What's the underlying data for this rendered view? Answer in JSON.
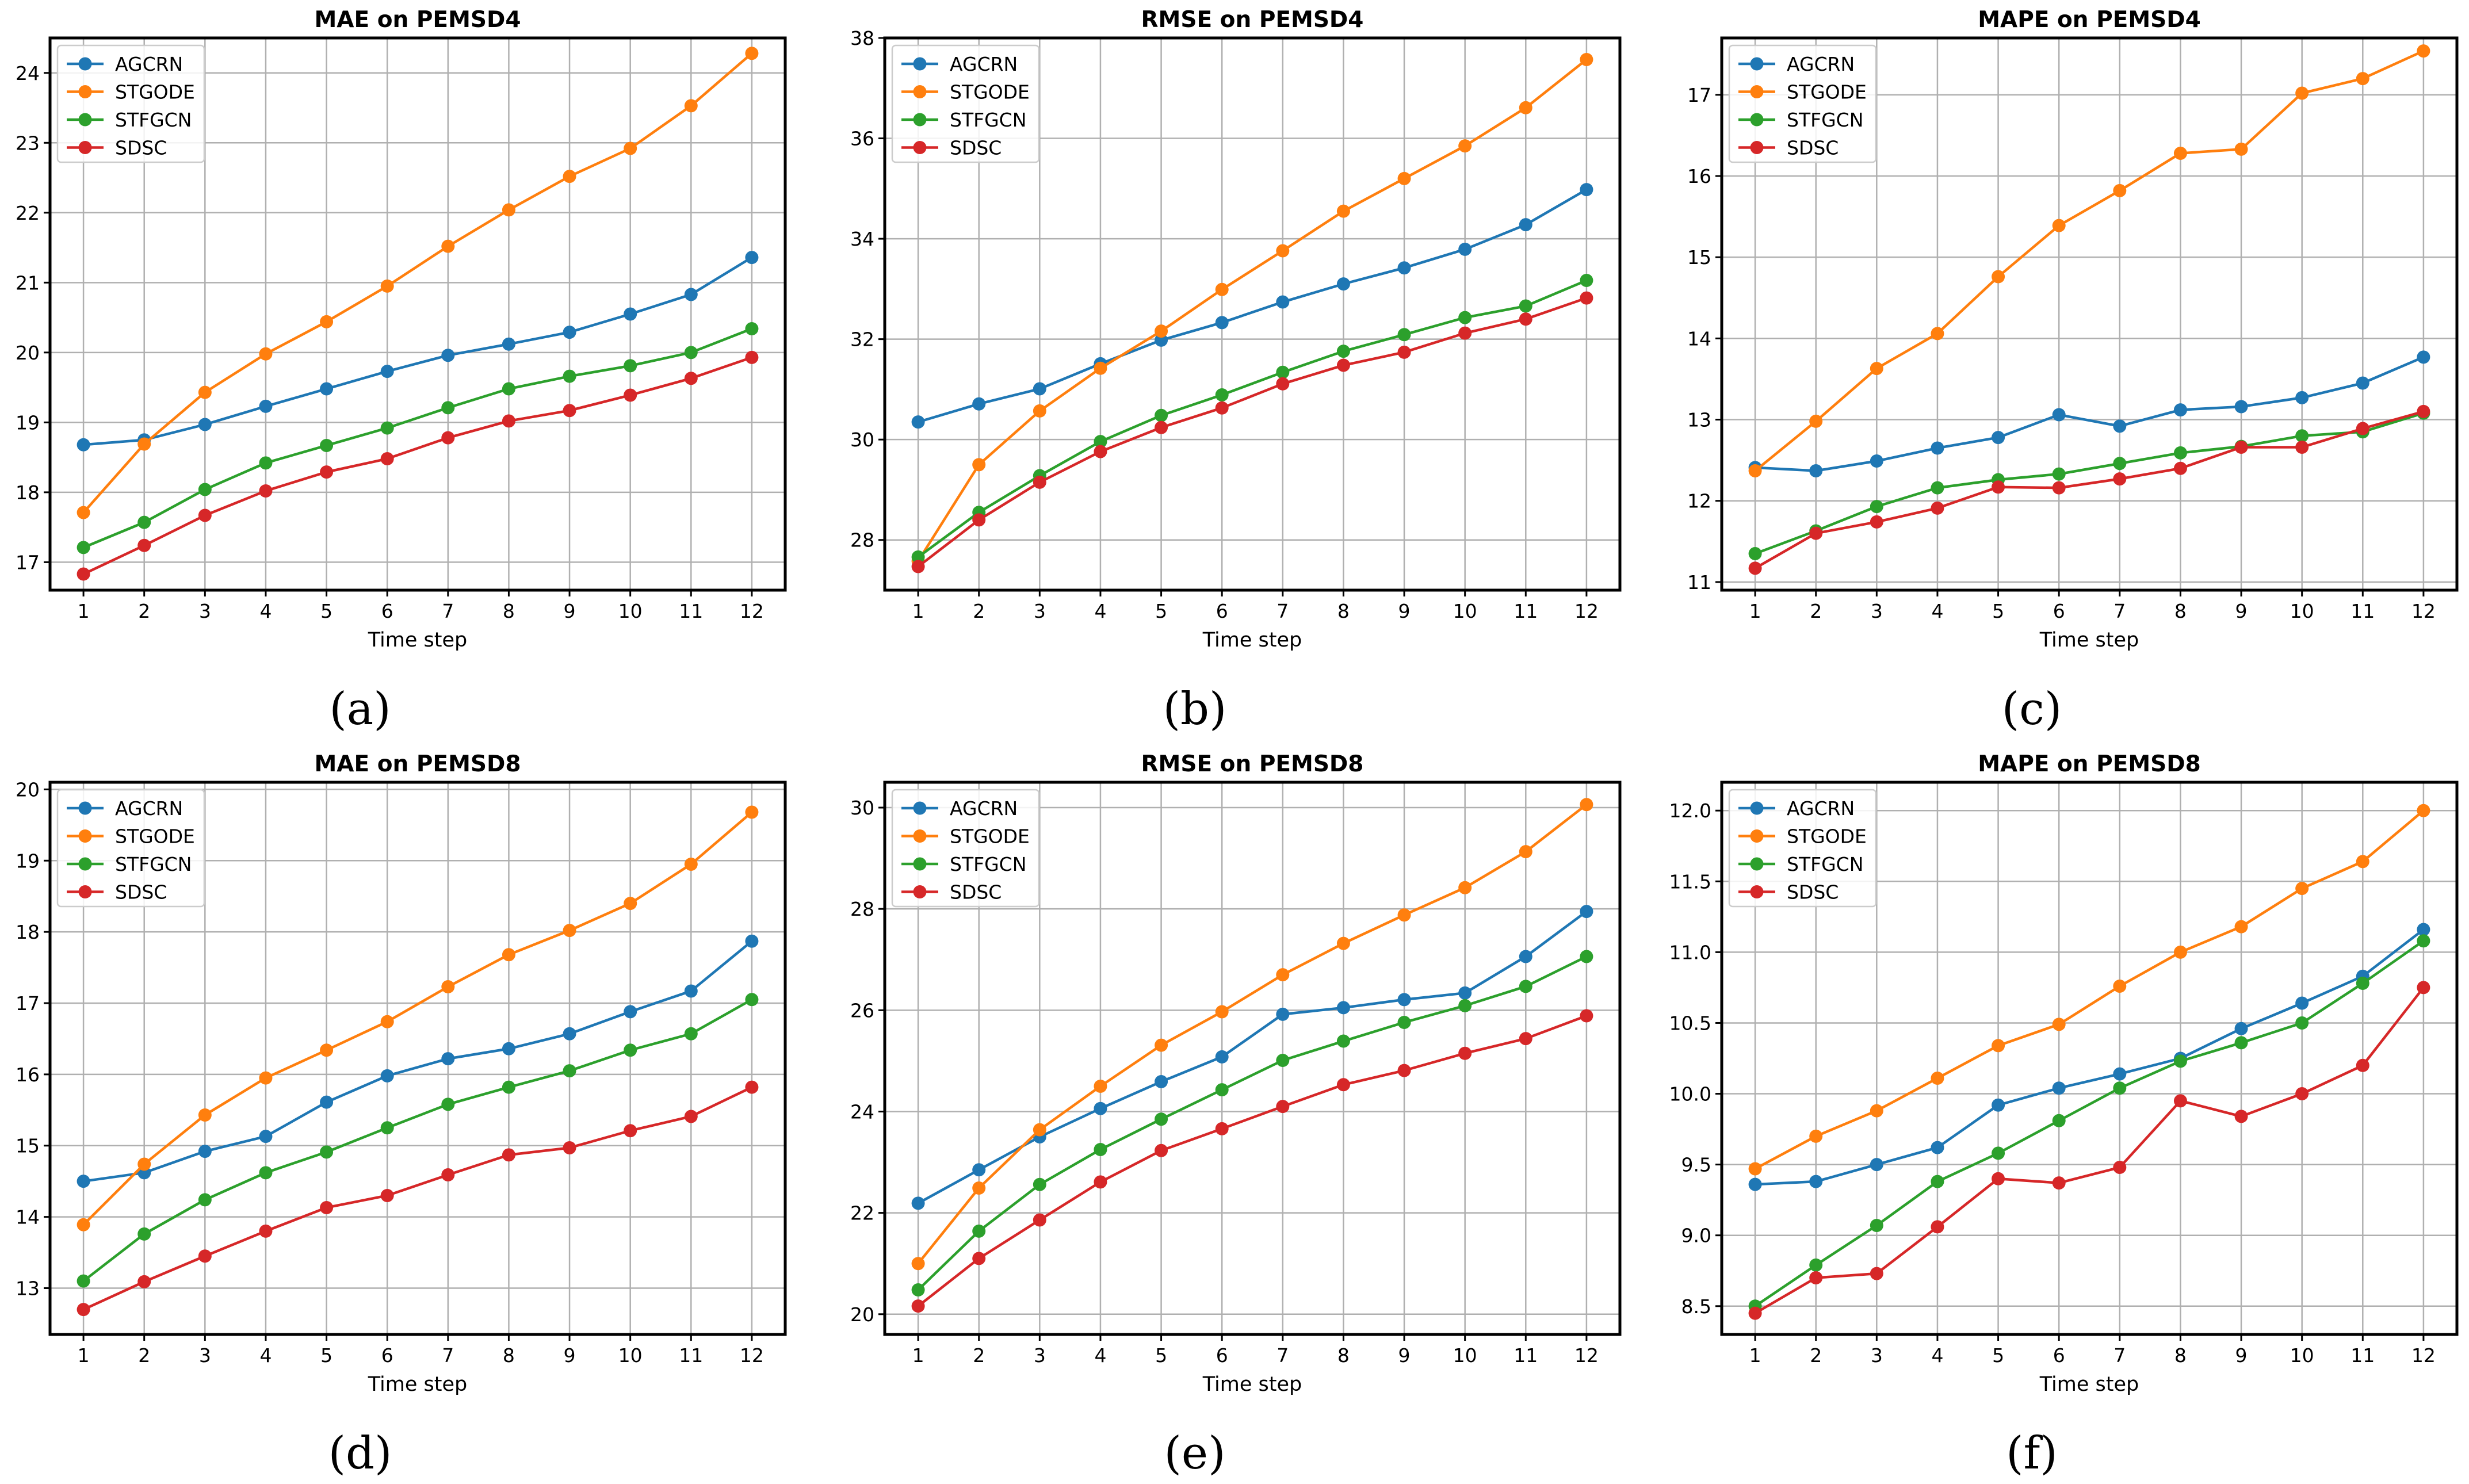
{
  "series_colors": {
    "AGCRN": "#1f77b4",
    "STGODE": "#ff7f0e",
    "STFGCN": "#2ca02c",
    "SDSC": "#d62728"
  },
  "chart_data": [
    {
      "type": "line",
      "title": "MAE on PEMSD4",
      "caption": "(a)",
      "xlabel": "Time step",
      "ylabel": "",
      "x": [
        1,
        2,
        3,
        4,
        5,
        6,
        7,
        8,
        9,
        10,
        11,
        12
      ],
      "ylim": [
        16.6,
        24.5
      ],
      "yticks": [
        17,
        18,
        19,
        20,
        21,
        22,
        23,
        24
      ],
      "grid": true,
      "legend": "top-left",
      "series": [
        {
          "name": "AGCRN",
          "values": [
            18.68,
            18.75,
            18.97,
            19.23,
            19.48,
            19.73,
            19.96,
            20.12,
            20.29,
            20.55,
            20.83,
            21.36
          ]
        },
        {
          "name": "STGODE",
          "values": [
            17.71,
            18.69,
            19.43,
            19.98,
            20.44,
            20.95,
            21.52,
            22.04,
            22.52,
            22.92,
            23.53,
            24.28
          ]
        },
        {
          "name": "STFGCN",
          "values": [
            17.21,
            17.57,
            18.04,
            18.42,
            18.67,
            18.92,
            19.21,
            19.48,
            19.66,
            19.81,
            20.0,
            20.34
          ]
        },
        {
          "name": "SDSC",
          "values": [
            16.83,
            17.24,
            17.67,
            18.02,
            18.29,
            18.48,
            18.78,
            19.02,
            19.17,
            19.39,
            19.63,
            19.93
          ]
        }
      ]
    },
    {
      "type": "line",
      "title": "RMSE on PEMSD4",
      "caption": "(b)",
      "xlabel": "Time step",
      "ylabel": "",
      "x": [
        1,
        2,
        3,
        4,
        5,
        6,
        7,
        8,
        9,
        10,
        11,
        12
      ],
      "ylim": [
        27.0,
        38.0
      ],
      "yticks": [
        28,
        30,
        32,
        34,
        36,
        38
      ],
      "grid": true,
      "legend": "top-left",
      "series": [
        {
          "name": "AGCRN",
          "values": [
            30.35,
            30.71,
            31.01,
            31.51,
            31.98,
            32.33,
            32.74,
            33.1,
            33.42,
            33.79,
            34.28,
            34.98
          ]
        },
        {
          "name": "STGODE",
          "values": [
            27.58,
            29.5,
            30.57,
            31.42,
            32.16,
            32.99,
            33.76,
            34.55,
            35.2,
            35.85,
            36.61,
            37.57
          ]
        },
        {
          "name": "STFGCN",
          "values": [
            27.66,
            28.55,
            29.28,
            29.96,
            30.48,
            30.89,
            31.34,
            31.76,
            32.09,
            32.43,
            32.66,
            33.17
          ]
        },
        {
          "name": "SDSC",
          "values": [
            27.47,
            28.4,
            29.15,
            29.76,
            30.24,
            30.63,
            31.11,
            31.48,
            31.74,
            32.12,
            32.4,
            32.82
          ]
        }
      ]
    },
    {
      "type": "line",
      "title": "MAPE on PEMSD4",
      "caption": "(c)",
      "xlabel": "Time step",
      "ylabel": "",
      "x": [
        1,
        2,
        3,
        4,
        5,
        6,
        7,
        8,
        9,
        10,
        11,
        12
      ],
      "ylim": [
        10.9,
        17.7
      ],
      "yticks": [
        11,
        12,
        13,
        14,
        15,
        16,
        17
      ],
      "grid": true,
      "legend": "top-left",
      "series": [
        {
          "name": "AGCRN",
          "values": [
            12.41,
            12.37,
            12.49,
            12.65,
            12.78,
            13.06,
            12.92,
            13.12,
            13.16,
            13.27,
            13.45,
            13.77
          ]
        },
        {
          "name": "STGODE",
          "values": [
            12.37,
            12.98,
            13.63,
            14.06,
            14.76,
            15.39,
            15.82,
            16.28,
            16.33,
            17.02,
            17.2,
            17.54
          ]
        },
        {
          "name": "STFGCN",
          "values": [
            11.35,
            11.63,
            11.93,
            12.16,
            12.26,
            12.33,
            12.46,
            12.59,
            12.67,
            12.8,
            12.85,
            13.08
          ]
        },
        {
          "name": "SDSC",
          "values": [
            11.17,
            11.6,
            11.74,
            11.91,
            12.17,
            12.16,
            12.27,
            12.4,
            12.66,
            12.66,
            12.89,
            13.1
          ]
        }
      ]
    },
    {
      "type": "line",
      "title": "MAE on PEMSD8",
      "caption": "(d)",
      "xlabel": "Time step",
      "ylabel": "",
      "x": [
        1,
        2,
        3,
        4,
        5,
        6,
        7,
        8,
        9,
        10,
        11,
        12
      ],
      "ylim": [
        12.35,
        20.1
      ],
      "yticks": [
        13,
        14,
        15,
        16,
        17,
        18,
        19,
        20
      ],
      "grid": true,
      "legend": "top-left",
      "series": [
        {
          "name": "AGCRN",
          "values": [
            14.5,
            14.62,
            14.92,
            15.13,
            15.61,
            15.98,
            16.22,
            16.36,
            16.57,
            16.88,
            17.17,
            17.87
          ]
        },
        {
          "name": "STGODE",
          "values": [
            13.89,
            14.74,
            15.43,
            15.95,
            16.34,
            16.74,
            17.23,
            17.68,
            18.02,
            18.4,
            18.95,
            19.68
          ]
        },
        {
          "name": "STFGCN",
          "values": [
            13.1,
            13.76,
            14.24,
            14.62,
            14.91,
            15.25,
            15.58,
            15.82,
            16.05,
            16.34,
            16.57,
            17.05
          ]
        },
        {
          "name": "SDSC",
          "values": [
            12.7,
            13.09,
            13.45,
            13.8,
            14.13,
            14.3,
            14.59,
            14.87,
            14.97,
            15.21,
            15.41,
            15.82
          ]
        }
      ]
    },
    {
      "type": "line",
      "title": "RMSE on PEMSD8",
      "caption": "(e)",
      "xlabel": "Time step",
      "ylabel": "",
      "x": [
        1,
        2,
        3,
        4,
        5,
        6,
        7,
        8,
        9,
        10,
        11,
        12
      ],
      "ylim": [
        19.6,
        30.5
      ],
      "yticks": [
        20,
        22,
        24,
        26,
        28,
        30
      ],
      "grid": true,
      "legend": "top-left",
      "series": [
        {
          "name": "AGCRN",
          "values": [
            22.19,
            22.85,
            23.5,
            24.06,
            24.59,
            25.08,
            25.92,
            26.05,
            26.21,
            26.34,
            27.06,
            27.95
          ]
        },
        {
          "name": "STGODE",
          "values": [
            21.0,
            22.49,
            23.64,
            24.5,
            25.31,
            25.97,
            26.7,
            27.32,
            27.88,
            28.42,
            29.13,
            30.06
          ]
        },
        {
          "name": "STFGCN",
          "values": [
            20.48,
            21.64,
            22.56,
            23.25,
            23.85,
            24.43,
            25.01,
            25.39,
            25.76,
            26.09,
            26.47,
            27.06
          ]
        },
        {
          "name": "SDSC",
          "values": [
            20.16,
            21.1,
            21.86,
            22.61,
            23.23,
            23.66,
            24.1,
            24.53,
            24.81,
            25.15,
            25.44,
            25.89
          ]
        }
      ]
    },
    {
      "type": "line",
      "title": "MAPE on PEMSD8",
      "caption": "(f)",
      "xlabel": "Time step",
      "ylabel": "",
      "x": [
        1,
        2,
        3,
        4,
        5,
        6,
        7,
        8,
        9,
        10,
        11,
        12
      ],
      "ylim": [
        8.3,
        12.2
      ],
      "yticks": [
        8.5,
        9.0,
        9.5,
        10.0,
        10.5,
        11.0,
        11.5,
        12.0
      ],
      "ytick_labels": [
        "8.5",
        "9.0",
        "9.5",
        "10.0",
        "10.5",
        "11.0",
        "11.5",
        "12.0"
      ],
      "grid": true,
      "legend": "top-left",
      "series": [
        {
          "name": "AGCRN",
          "values": [
            9.36,
            9.38,
            9.5,
            9.62,
            9.92,
            10.04,
            10.14,
            10.25,
            10.46,
            10.64,
            10.83,
            11.16
          ]
        },
        {
          "name": "STGODE",
          "values": [
            9.47,
            9.7,
            9.88,
            10.11,
            10.34,
            10.49,
            10.76,
            11.0,
            11.18,
            11.45,
            11.64,
            12.0
          ]
        },
        {
          "name": "STFGCN",
          "values": [
            8.5,
            8.79,
            9.07,
            9.38,
            9.58,
            9.81,
            10.04,
            10.23,
            10.36,
            10.5,
            10.78,
            11.08
          ]
        },
        {
          "name": "SDSC",
          "values": [
            8.45,
            8.7,
            8.73,
            9.06,
            9.4,
            9.37,
            9.48,
            9.95,
            9.84,
            10.0,
            10.2,
            10.75
          ]
        }
      ]
    }
  ]
}
